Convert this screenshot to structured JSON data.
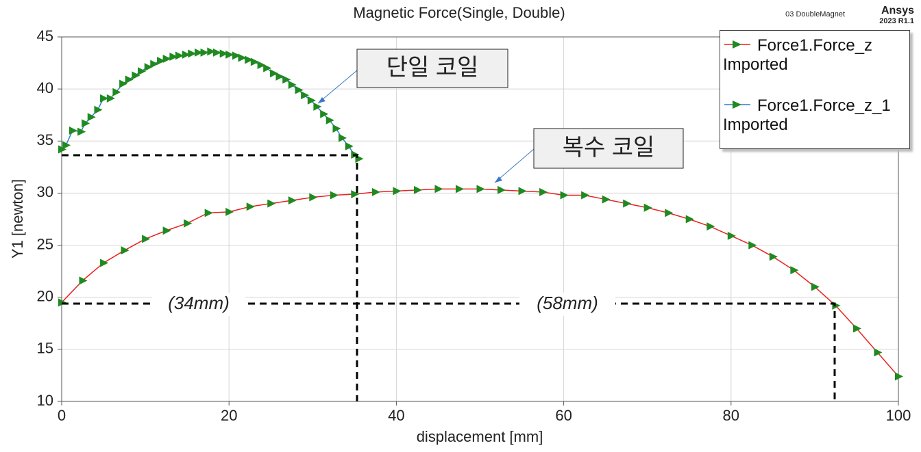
{
  "chart_data": {
    "type": "line",
    "title": "Magnetic Force(Single, Double)",
    "project": "03 DoubleMagnet",
    "brand": "Ansys",
    "version": "2023 R1.1",
    "x_label": "displacement [mm]",
    "y_label": "Y1 [newton]",
    "xlim": [
      0,
      100
    ],
    "xticks": [
      0,
      20,
      40,
      60,
      80,
      100
    ],
    "ylim": [
      10,
      45
    ],
    "yticks": [
      10,
      15,
      20,
      25,
      30,
      35,
      40,
      45
    ],
    "grid": true,
    "legend": "upper right",
    "marker_color": "#1f8a1f",
    "series": [
      {
        "name": "Force1.Force_z\nImported",
        "color": "#e8231f",
        "x": [
          0,
          2.5,
          5,
          7.5,
          10,
          12.5,
          15,
          17.5,
          20,
          22.5,
          25,
          27.5,
          30,
          32.5,
          35,
          37.5,
          40,
          42.5,
          45,
          47.5,
          50,
          52.5,
          55,
          57.5,
          60,
          62.5,
          65,
          67.5,
          70,
          72.5,
          75,
          77.5,
          80,
          82.5,
          85,
          87.5,
          90,
          92.5,
          95,
          97.5,
          100
        ],
        "values": [
          19.5,
          21.6,
          23.3,
          24.5,
          25.6,
          26.4,
          27.1,
          28.1,
          28.2,
          28.7,
          29.0,
          29.3,
          29.6,
          29.8,
          29.9,
          30.1,
          30.2,
          30.3,
          30.4,
          30.4,
          30.4,
          30.3,
          30.2,
          30.1,
          29.8,
          29.8,
          29.4,
          29.0,
          28.6,
          28.1,
          27.5,
          26.8,
          25.9,
          25.0,
          23.9,
          22.6,
          21.0,
          19.2,
          17.0,
          14.7,
          12.4
        ]
      },
      {
        "name": "Force1.Force_z_1\nImported",
        "color": "#2a7fd4",
        "x": [
          0,
          0.5,
          1.3,
          2.3,
          2.8,
          3.5,
          4.3,
          5,
          5.8,
          6.5,
          7.3,
          8,
          8.8,
          9.5,
          10.3,
          11,
          11.8,
          12.5,
          13.3,
          14,
          14.8,
          15.5,
          16.3,
          17,
          17.8,
          18.5,
          19.3,
          20,
          20.8,
          21.5,
          22.3,
          23,
          23.8,
          24.5,
          25.3,
          26,
          26.8,
          27.5,
          28.3,
          29,
          29.8,
          30.5,
          31.3,
          32,
          32.8,
          33.5,
          34.3,
          35,
          35.5
        ],
        "values": [
          34.2,
          34.6,
          36.0,
          35.9,
          36.7,
          37.3,
          38.0,
          39.1,
          39.1,
          39.7,
          40.5,
          40.9,
          41.3,
          41.7,
          42.1,
          42.4,
          42.7,
          42.9,
          43.1,
          43.2,
          43.3,
          43.4,
          43.5,
          43.5,
          43.6,
          43.5,
          43.4,
          43.3,
          43.2,
          43.0,
          42.8,
          42.6,
          42.3,
          42.0,
          41.5,
          41.2,
          40.9,
          40.4,
          39.9,
          39.4,
          38.9,
          38.3,
          37.6,
          37.0,
          36.2,
          35.3,
          34.5,
          33.7,
          33.3
        ]
      }
    ],
    "annotations": [
      "단일 코일",
      "복수 코일",
      "(34mm)",
      "(58mm)"
    ]
  }
}
